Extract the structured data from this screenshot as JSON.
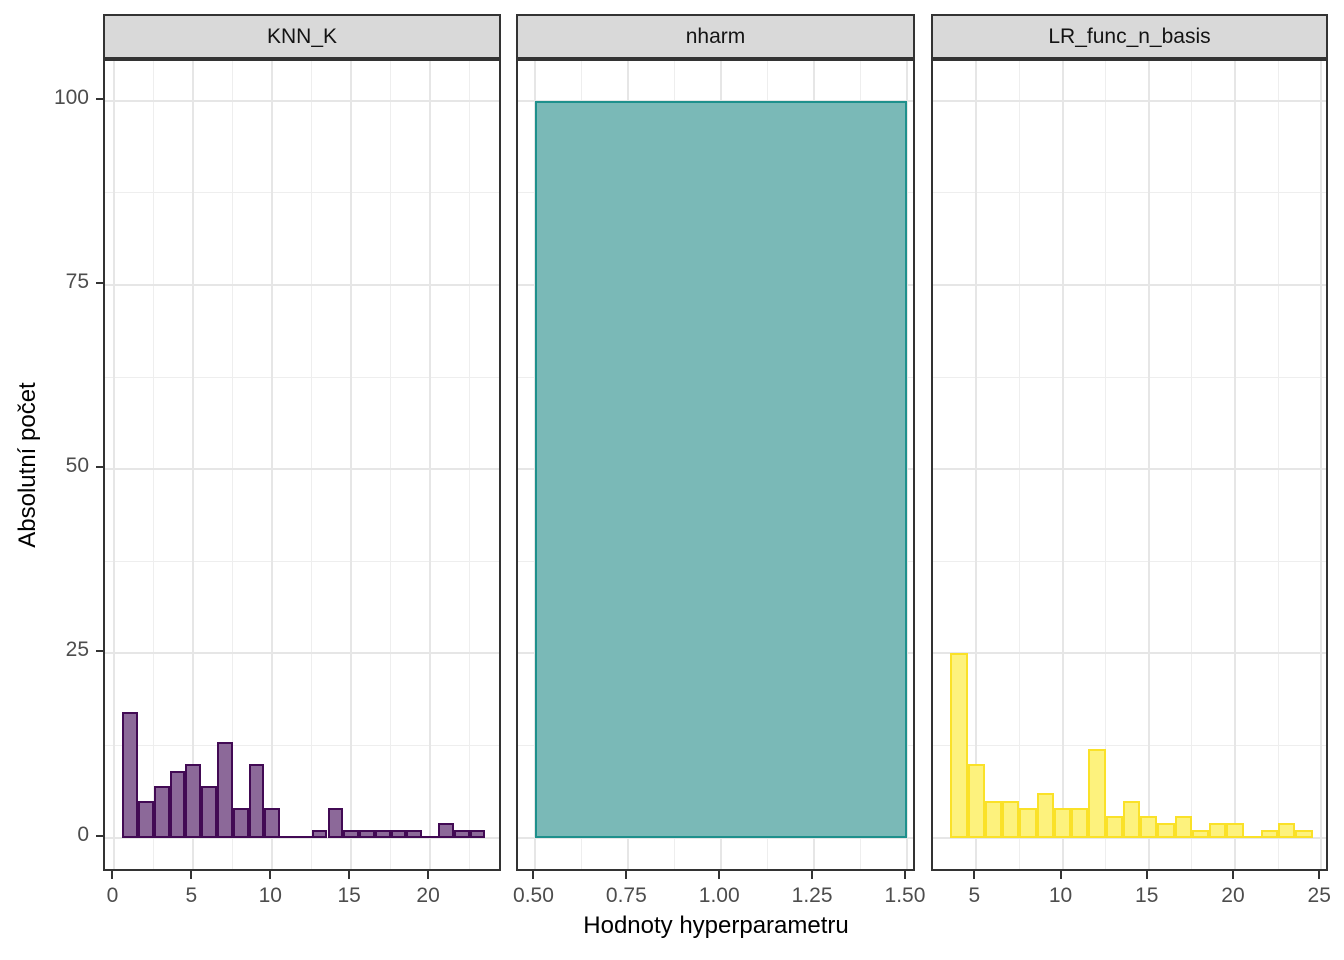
{
  "chart_data": {
    "type": "bar",
    "subtype": "faceted-histogram",
    "title": "",
    "xlabel": "Hodnoty hyperparametru",
    "ylabel": "Absolutní počet",
    "ylim": [
      -4.8,
      105.4
    ],
    "y_major_ticks": [
      0,
      25,
      50,
      75,
      100
    ],
    "y_minor_ticks": [
      12.5,
      37.5,
      62.5,
      87.5
    ],
    "y_tick_labels": [
      "0",
      "25",
      "50",
      "75",
      "100"
    ],
    "grid": "on",
    "legend": "none",
    "panels": [
      {
        "facet_label": "KNN_K",
        "fill": "#8c6999",
        "stroke": "#420a54",
        "xlim": [
          -0.6,
          24.62
        ],
        "x_major_ticks": [
          0,
          5,
          10,
          15,
          20
        ],
        "x_minor_ticks": [
          2.5,
          7.5,
          12.5,
          17.5,
          22.5
        ],
        "x_tick_labels": [
          "0",
          "5",
          "10",
          "15",
          "20"
        ],
        "binwidth": 1,
        "centers": [
          1,
          2,
          3,
          4,
          5,
          6,
          7,
          8,
          9,
          10,
          11,
          12,
          13,
          14,
          15,
          16,
          17,
          18,
          19,
          20,
          21,
          22,
          23
        ],
        "counts": [
          17,
          5,
          7,
          9,
          10,
          7,
          13,
          4,
          10,
          4,
          0,
          0,
          1,
          4,
          1,
          1,
          1,
          1,
          1,
          0,
          2,
          1,
          1
        ]
      },
      {
        "facet_label": "nharm",
        "fill": "#7ab9b7",
        "stroke": "#1e908c",
        "xlim": [
          0.453,
          1.527
        ],
        "x_major_ticks": [
          0.5,
          0.75,
          1.0,
          1.25,
          1.5
        ],
        "x_minor_ticks": [
          0.625,
          0.875,
          1.125,
          1.375
        ],
        "x_tick_labels": [
          "0.50",
          "0.75",
          "1.00",
          "1.25",
          "1.50"
        ],
        "binwidth": 1,
        "centers": [
          1.0
        ],
        "counts": [
          100
        ]
      },
      {
        "facet_label": "LR_func_n_basis",
        "fill": "#fdf27d",
        "stroke": "#fae128",
        "xlim": [
          2.49,
          25.51
        ],
        "x_major_ticks": [
          5,
          10,
          15,
          20,
          25
        ],
        "x_minor_ticks": [
          7.5,
          12.5,
          17.5,
          22.5
        ],
        "x_tick_labels": [
          "5",
          "10",
          "15",
          "20",
          "25"
        ],
        "binwidth": 1,
        "centers": [
          4,
          5,
          6,
          7,
          8,
          9,
          10,
          11,
          12,
          13,
          14,
          15,
          16,
          17,
          18,
          19,
          20,
          21,
          22,
          23,
          24
        ],
        "counts": [
          25,
          10,
          5,
          5,
          4,
          6,
          4,
          4,
          12,
          3,
          5,
          3,
          2,
          3,
          1,
          2,
          2,
          0,
          1,
          2,
          1
        ]
      }
    ]
  }
}
